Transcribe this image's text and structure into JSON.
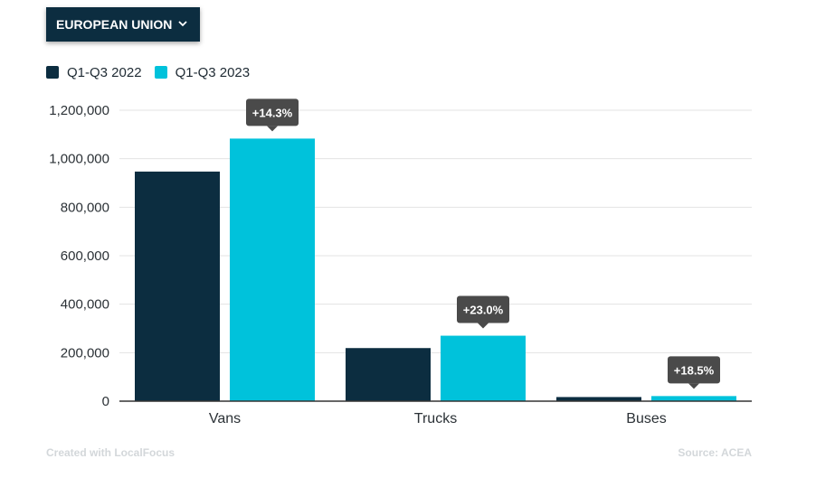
{
  "region_selector": {
    "label": "EUROPEAN UNION",
    "icon": "chevron-down-icon"
  },
  "colors": {
    "series_2022": "#0c2d40",
    "series_2023": "#00c2db",
    "annotation_bg": "#4a4a4a",
    "grid": "#e3e3e3",
    "axis": "#333333"
  },
  "chart_data": {
    "type": "bar",
    "categories": [
      "Vans",
      "Trucks",
      "Buses"
    ],
    "series": [
      {
        "name": "Q1-Q3 2022",
        "values": [
          947000,
          219000,
          17000
        ]
      },
      {
        "name": "Q1-Q3 2023",
        "values": [
          1083000,
          270000,
          21000
        ]
      }
    ],
    "annotations": [
      "+14.3%",
      "+23.0%",
      "+18.5%"
    ],
    "yticks": [
      0,
      200000,
      400000,
      600000,
      800000,
      1000000,
      1200000
    ],
    "ytick_labels": [
      "0",
      "200,000",
      "400,000",
      "600,000",
      "800,000",
      "1,000,000",
      "1,200,000"
    ],
    "ylim": [
      0,
      1200000
    ],
    "grid": true,
    "legend_position": "top-left",
    "title": "",
    "xlabel": "",
    "ylabel": ""
  },
  "footer": {
    "credit": "Created with LocalFocus",
    "source": "Source: ACEA"
  }
}
